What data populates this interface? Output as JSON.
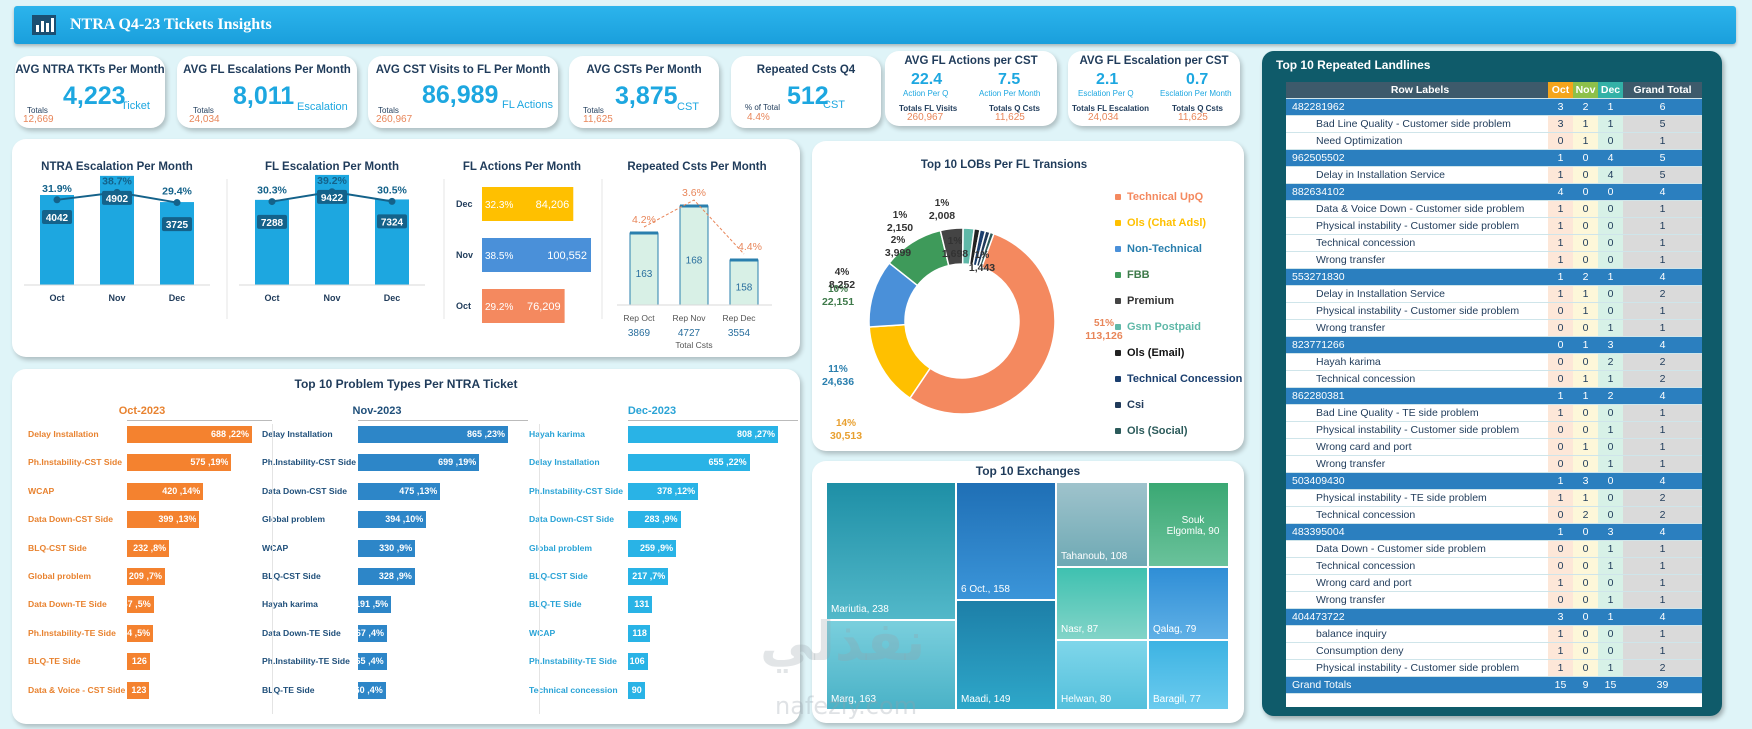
{
  "dashboard": {
    "title": "NTRA Q4-23 Tickets Insights"
  },
  "kpis": [
    {
      "title": "AVG NTRA TKTs Per Month",
      "value": "4,223",
      "unit": "Ticket",
      "sub_label": "Totals",
      "sub_value": "12,669"
    },
    {
      "title": "AVG FL Escalations Per Month",
      "value": "8,011",
      "unit": "Escalation",
      "sub_label": "Totals",
      "sub_value": "24,034"
    },
    {
      "title": "AVG CST Visits to FL Per Month",
      "value": "86,989",
      "unit": "FL Actions",
      "sub_label": "Totals",
      "sub_value": "260,967"
    },
    {
      "title": "AVG CSTs Per Month",
      "value": "3,875",
      "unit": "CST",
      "sub_label": "Totals",
      "sub_value": "11,625"
    },
    {
      "title": "Repeated Csts Q4",
      "value": "512",
      "unit": "CST",
      "sub_label": "% of Total",
      "sub_value": "4.4%"
    }
  ],
  "kpi_split": [
    {
      "title": "AVG FL Actions per CST",
      "left_value": "22.4",
      "left_unit": "Action Per Q",
      "right_value": "7.5",
      "right_unit": "Action Per Month",
      "left_label": "Totals FL Visits",
      "left_total": "260,967",
      "right_label": "Totals Q Csts",
      "right_total": "11,625"
    },
    {
      "title": "AVG FL Escalation per CST",
      "left_value": "2.1",
      "left_unit": "Esclation Per Q",
      "right_value": "0.7",
      "right_unit": "Esclation Per Month",
      "left_label": "Totals FL Escalation",
      "left_total": "24,034",
      "right_label": "Totals Q Csts",
      "right_total": "11,625"
    }
  ],
  "chart_data": [
    {
      "type": "bar",
      "title": "NTRA Escalation Per Month",
      "categories": [
        "Oct",
        "Nov",
        "Dec"
      ],
      "values": [
        4042,
        4902,
        3725
      ],
      "line_pct": [
        "31.9%",
        "38.7%",
        "29.4%"
      ],
      "line_values": [
        31.9,
        38.7,
        29.4
      ]
    },
    {
      "type": "bar",
      "title": "FL Escalation Per Month",
      "categories": [
        "Oct",
        "Nov",
        "Dec"
      ],
      "values": [
        7288,
        9422,
        7324
      ],
      "line_pct": [
        "30.3%",
        "39.2%",
        "30.5%"
      ],
      "line_values": [
        30.3,
        39.2,
        30.5
      ]
    },
    {
      "type": "bar",
      "title": "FL Actions Per Month",
      "orientation": "horizontal",
      "categories": [
        "Dec",
        "Nov",
        "Oct"
      ],
      "values": [
        84206,
        100552,
        76209
      ],
      "pct": [
        "32.3%",
        "38.5%",
        "29.2%"
      ],
      "colors": [
        "#ffc000",
        "#4a90d9",
        "#f4895f"
      ]
    },
    {
      "type": "bar",
      "title": "Repeated Csts Per Month",
      "categories": [
        "Rep Oct",
        "Rep Nov",
        "Rep Dec"
      ],
      "values": [
        163,
        168,
        158
      ],
      "pct": [
        "4.2%",
        "3.6%",
        "4.4%"
      ],
      "pct_values": [
        4.2,
        3.6,
        4.4
      ],
      "totals": [
        "3869",
        "4727",
        "3554"
      ],
      "xlabel": "Total  Csts"
    },
    {
      "type": "pie",
      "title": "Top 10 LOBs Per FL Transions",
      "labels": [
        "Technical UpQ",
        "Ols (Chat Adsl)",
        "Non-Technical",
        "FBB",
        "Premium",
        "Gsm Postpaid",
        "Ols (Email)",
        "Technical Concession",
        "Csi",
        "Ols (Social)"
      ],
      "values": [
        113126,
        30513,
        24636,
        22151,
        8252,
        3999,
        2150,
        2008,
        1698,
        1443
      ],
      "pct_labels": [
        "51%",
        "14%",
        "11%",
        "10%",
        "4%",
        "2%",
        "1%",
        "1%",
        "1%",
        "1%"
      ],
      "value_labels": [
        "113,126",
        "30,513",
        "24,636",
        "22,151",
        "8,252",
        "3,999",
        "2,150",
        "2,008",
        "1,698",
        "1,443"
      ],
      "colors": [
        "#f4895f",
        "#ffc000",
        "#4a90d9",
        "#3e9a5a",
        "#444444",
        "#5fb8a8",
        "#222222",
        "#1a3e6e",
        "#203a5a",
        "#2b5a5a"
      ]
    },
    {
      "type": "bar",
      "title": "Top 10 Problem Types Per NTRA Ticket",
      "orientation": "horizontal",
      "series": [
        {
          "name": "Oct-2023",
          "color": "#f4822f",
          "labels": [
            "Delay Installation",
            "Ph.Instability-CST Side",
            "WCAP",
            "Data Down-CST Side",
            "BLQ-CST Side",
            "Global problem",
            "Data Down-TE Side",
            "Ph.Instability-TE Side",
            "BLQ-TE Side",
            "Data & Voice - CST Side"
          ],
          "pct": [
            22,
            19,
            14,
            13,
            8,
            7,
            5,
            5,
            4,
            4
          ],
          "values": [
            688,
            575,
            420,
            399,
            232,
            209,
            147,
            144,
            126,
            123
          ],
          "value_labels": [
            "22%, 688",
            "19%, 575",
            "14%, 420",
            "13%, 399",
            "8%, 232",
            "7%, 209",
            "5%, 147",
            "5%, 144",
            "126",
            "123"
          ]
        },
        {
          "name": "Nov-2023",
          "color": "#2d86c8",
          "labels": [
            "Delay Installation",
            "Ph.Instability-CST Side",
            "Data Down-CST Side",
            "Global problem",
            "WCAP",
            "BLQ-CST Side",
            "Hayah karima",
            "Data Down-TE Side",
            "Ph.Instability-TE Side",
            "BLQ-TE Side"
          ],
          "pct": [
            23,
            19,
            13,
            10,
            9,
            9,
            5,
            4,
            4,
            4
          ],
          "values": [
            865,
            699,
            475,
            394,
            330,
            328,
            191,
            167,
            165,
            160
          ],
          "value_labels": [
            "23%, 865",
            "19%, 699",
            "13%, 475",
            "10%, 394",
            "9%, 330",
            "9%, 328",
            "5%, 191",
            "4%, 167",
            "4%, 165",
            "4%, 160"
          ]
        },
        {
          "name": "Dec-2023",
          "color": "#29b3e6",
          "labels": [
            "Hayah karima",
            "Delay Installation",
            "Ph.Instability-CST Side",
            "Data Down-CST Side",
            "Global problem",
            "BLQ-CST Side",
            "BLQ-TE Side",
            "WCAP",
            "Ph.Instability-TE Side",
            "Technical concession"
          ],
          "pct": [
            27,
            22,
            12,
            9,
            9,
            7,
            4,
            4,
            4,
            3
          ],
          "values": [
            808,
            655,
            378,
            283,
            259,
            217,
            131,
            118,
            106,
            90
          ],
          "value_labels": [
            "27%, 808",
            "22%, 655",
            "12%, 378",
            "9%, 283",
            "9%, 259",
            "7%, 217",
            "131",
            "118",
            "106",
            "90"
          ]
        }
      ]
    },
    {
      "type": "heatmap",
      "subtype": "treemap",
      "title": "Top 10 Exchanges",
      "labels": [
        "Mariutia",
        "6 Oct.",
        "Tahanoub",
        "Souk Elgomla",
        "Nasr",
        "Qalag",
        "Marg",
        "Maadi",
        "Helwan",
        "Baragil"
      ],
      "values": [
        238,
        158,
        108,
        90,
        87,
        79,
        163,
        149,
        80,
        77
      ],
      "display": [
        "Mariutia, 238",
        "6 Oct., 158",
        "Tahanoub, 108",
        "Souk Elgomla, 90",
        "Nasr, 87",
        "Qalag, 79",
        "Marg, 163",
        "Maadi, 149",
        "Helwan, 80",
        "Baragil, 77"
      ]
    }
  ],
  "pivot": {
    "title": "Top 10 Repeated Landlines",
    "headers": [
      "Row Labels",
      "Oct",
      "Nov",
      "Dec",
      "Grand Total"
    ],
    "rows": [
      {
        "kind": "grp",
        "cells": [
          "482281962",
          "3",
          "2",
          "1",
          "6"
        ]
      },
      {
        "kind": "sub",
        "cells": [
          "Bad Line Quality - Customer side problem",
          "3",
          "1",
          "1",
          "5"
        ]
      },
      {
        "kind": "sub",
        "cells": [
          "Need Optimization",
          "0",
          "1",
          "0",
          "1"
        ]
      },
      {
        "kind": "grp",
        "cells": [
          "962505502",
          "1",
          "0",
          "4",
          "5"
        ]
      },
      {
        "kind": "sub",
        "cells": [
          "Delay in Installation Service",
          "1",
          "0",
          "4",
          "5"
        ]
      },
      {
        "kind": "grp",
        "cells": [
          "882634102",
          "4",
          "0",
          "0",
          "4"
        ]
      },
      {
        "kind": "sub",
        "cells": [
          "Data & Voice Down - Customer side problem",
          "1",
          "0",
          "0",
          "1"
        ]
      },
      {
        "kind": "sub",
        "cells": [
          "Physical instability - Customer side problem",
          "1",
          "0",
          "0",
          "1"
        ]
      },
      {
        "kind": "sub",
        "cells": [
          "Technical concession",
          "1",
          "0",
          "0",
          "1"
        ]
      },
      {
        "kind": "sub",
        "cells": [
          "Wrong transfer",
          "1",
          "0",
          "0",
          "1"
        ]
      },
      {
        "kind": "grp",
        "cells": [
          "553271830",
          "1",
          "2",
          "1",
          "4"
        ]
      },
      {
        "kind": "sub",
        "cells": [
          "Delay in Installation Service",
          "1",
          "1",
          "0",
          "2"
        ]
      },
      {
        "kind": "sub",
        "cells": [
          "Physical instability - Customer side problem",
          "0",
          "1",
          "0",
          "1"
        ]
      },
      {
        "kind": "sub",
        "cells": [
          "Wrong transfer",
          "0",
          "0",
          "1",
          "1"
        ]
      },
      {
        "kind": "grp",
        "cells": [
          "823771266",
          "0",
          "1",
          "3",
          "4"
        ]
      },
      {
        "kind": "sub",
        "cells": [
          "Hayah karima",
          "0",
          "0",
          "2",
          "2"
        ]
      },
      {
        "kind": "sub",
        "cells": [
          "Technical concession",
          "0",
          "1",
          "1",
          "2"
        ]
      },
      {
        "kind": "grp",
        "cells": [
          "862280381",
          "1",
          "1",
          "2",
          "4"
        ]
      },
      {
        "kind": "sub",
        "cells": [
          "Bad Line Quality - TE side problem",
          "1",
          "0",
          "0",
          "1"
        ]
      },
      {
        "kind": "sub",
        "cells": [
          "Physical instability - Customer side problem",
          "0",
          "0",
          "1",
          "1"
        ]
      },
      {
        "kind": "sub",
        "cells": [
          "Wrong card and port",
          "0",
          "1",
          "0",
          "1"
        ]
      },
      {
        "kind": "sub",
        "cells": [
          "Wrong transfer",
          "0",
          "0",
          "1",
          "1"
        ]
      },
      {
        "kind": "grp",
        "cells": [
          "503409430",
          "1",
          "3",
          "0",
          "4"
        ]
      },
      {
        "kind": "sub",
        "cells": [
          "Physical instability - TE side problem",
          "1",
          "1",
          "0",
          "2"
        ]
      },
      {
        "kind": "sub",
        "cells": [
          "Technical concession",
          "0",
          "2",
          "0",
          "2"
        ]
      },
      {
        "kind": "grp",
        "cells": [
          "483395004",
          "1",
          "0",
          "3",
          "4"
        ]
      },
      {
        "kind": "sub",
        "cells": [
          "Data Down - Customer side problem",
          "0",
          "0",
          "1",
          "1"
        ]
      },
      {
        "kind": "sub",
        "cells": [
          "Technical concession",
          "0",
          "0",
          "1",
          "1"
        ]
      },
      {
        "kind": "sub",
        "cells": [
          "Wrong card and port",
          "1",
          "0",
          "0",
          "1"
        ]
      },
      {
        "kind": "sub",
        "cells": [
          "Wrong transfer",
          "0",
          "0",
          "1",
          "1"
        ]
      },
      {
        "kind": "grp",
        "cells": [
          "404473722",
          "3",
          "0",
          "1",
          "4"
        ]
      },
      {
        "kind": "sub",
        "cells": [
          "balance inquiry",
          "1",
          "0",
          "0",
          "1"
        ]
      },
      {
        "kind": "sub",
        "cells": [
          "Consumption deny",
          "1",
          "0",
          "0",
          "1"
        ]
      },
      {
        "kind": "sub",
        "cells": [
          "Physical instability - Customer side problem",
          "1",
          "0",
          "1",
          "2"
        ]
      },
      {
        "kind": "tot",
        "cells": [
          "Grand Totals",
          "15",
          "9",
          "15",
          "39"
        ]
      }
    ]
  },
  "watermark": {
    "logo_text": "نفذلي",
    "url": "nafezly.com"
  }
}
